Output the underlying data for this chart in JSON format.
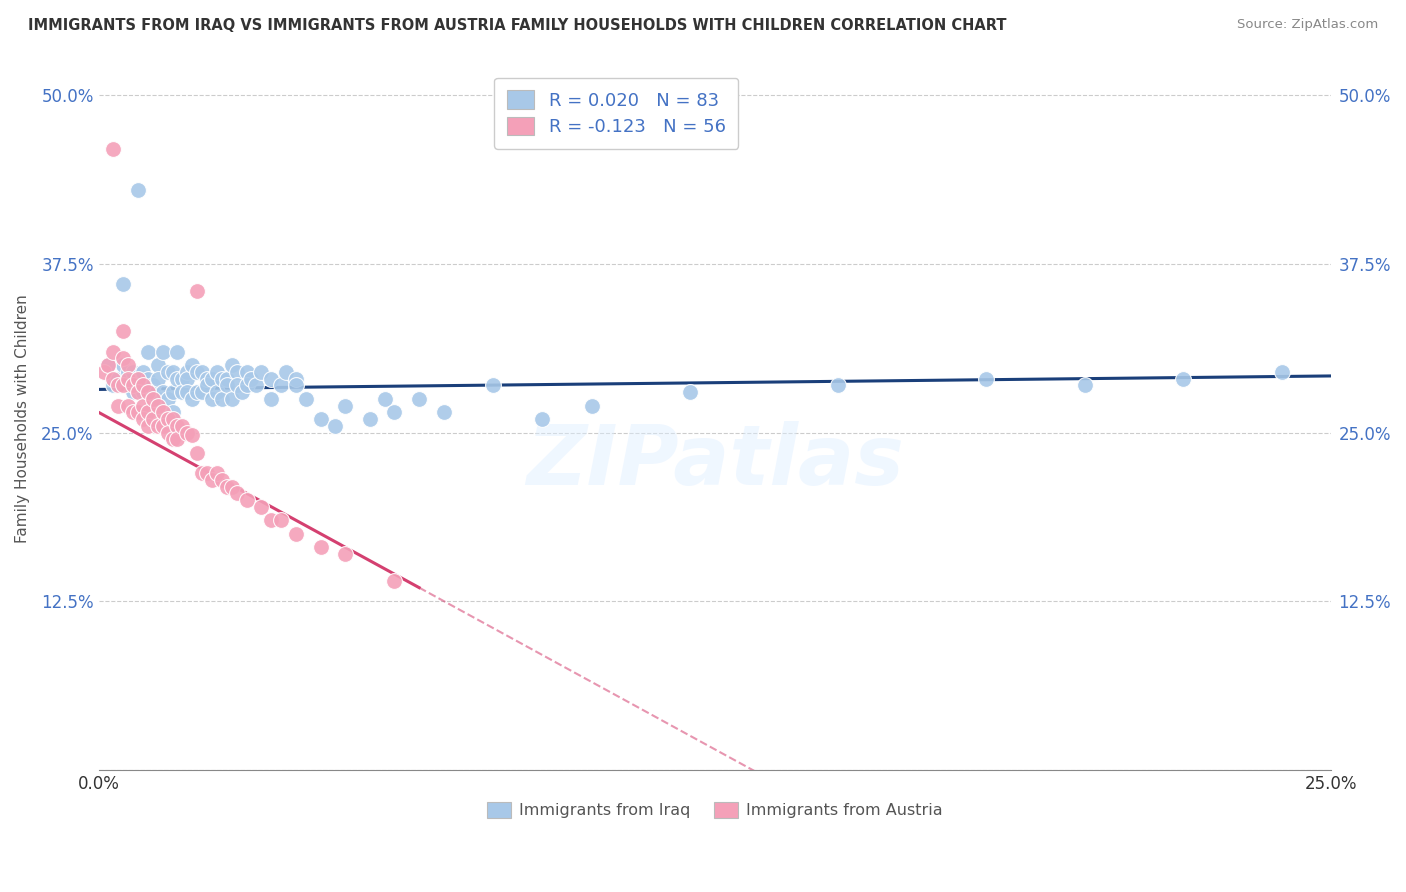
{
  "title": "IMMIGRANTS FROM IRAQ VS IMMIGRANTS FROM AUSTRIA FAMILY HOUSEHOLDS WITH CHILDREN CORRELATION CHART",
  "source": "Source: ZipAtlas.com",
  "ylabel": "Family Households with Children",
  "legend_iraq": "Immigrants from Iraq",
  "legend_austria": "Immigrants from Austria",
  "R_iraq": 0.02,
  "N_iraq": 83,
  "R_austria": -0.123,
  "N_austria": 56,
  "color_iraq": "#a8c8e8",
  "color_austria": "#f4a0b8",
  "trendline_iraq_color": "#1a3f7a",
  "trendline_austria_color": "#d44070",
  "background_color": "#ffffff",
  "xlim": [
    0.0,
    0.25
  ],
  "ylim": [
    0.0,
    0.52
  ],
  "ytick_vals": [
    0.0,
    0.125,
    0.25,
    0.375,
    0.5
  ],
  "ytick_labels": [
    "",
    "12.5%",
    "25.0%",
    "37.5%",
    "50.0%"
  ],
  "xtick_vals": [
    0.0,
    0.025,
    0.05,
    0.075,
    0.1,
    0.125,
    0.15,
    0.175,
    0.2,
    0.225,
    0.25
  ],
  "iraq_x": [
    0.002,
    0.003,
    0.004,
    0.005,
    0.005,
    0.006,
    0.007,
    0.007,
    0.008,
    0.008,
    0.009,
    0.009,
    0.01,
    0.01,
    0.011,
    0.011,
    0.012,
    0.012,
    0.012,
    0.013,
    0.013,
    0.014,
    0.014,
    0.015,
    0.015,
    0.015,
    0.016,
    0.016,
    0.017,
    0.017,
    0.018,
    0.018,
    0.018,
    0.019,
    0.019,
    0.02,
    0.02,
    0.021,
    0.021,
    0.022,
    0.022,
    0.023,
    0.023,
    0.024,
    0.024,
    0.025,
    0.025,
    0.026,
    0.026,
    0.027,
    0.027,
    0.028,
    0.028,
    0.029,
    0.03,
    0.03,
    0.031,
    0.032,
    0.033,
    0.035,
    0.035,
    0.037,
    0.038,
    0.04,
    0.04,
    0.042,
    0.045,
    0.048,
    0.05,
    0.055,
    0.058,
    0.06,
    0.065,
    0.07,
    0.08,
    0.09,
    0.1,
    0.12,
    0.15,
    0.18,
    0.2,
    0.22,
    0.24
  ],
  "iraq_y": [
    0.3,
    0.285,
    0.29,
    0.36,
    0.3,
    0.295,
    0.295,
    0.28,
    0.43,
    0.29,
    0.295,
    0.28,
    0.29,
    0.31,
    0.285,
    0.28,
    0.3,
    0.29,
    0.275,
    0.31,
    0.28,
    0.295,
    0.275,
    0.295,
    0.28,
    0.265,
    0.31,
    0.29,
    0.29,
    0.28,
    0.295,
    0.29,
    0.28,
    0.3,
    0.275,
    0.295,
    0.28,
    0.295,
    0.28,
    0.29,
    0.285,
    0.29,
    0.275,
    0.295,
    0.28,
    0.29,
    0.275,
    0.29,
    0.285,
    0.3,
    0.275,
    0.295,
    0.285,
    0.28,
    0.295,
    0.285,
    0.29,
    0.285,
    0.295,
    0.29,
    0.275,
    0.285,
    0.295,
    0.29,
    0.285,
    0.275,
    0.26,
    0.255,
    0.27,
    0.26,
    0.275,
    0.265,
    0.275,
    0.265,
    0.285,
    0.26,
    0.27,
    0.28,
    0.285,
    0.29,
    0.285,
    0.29,
    0.295
  ],
  "austria_x": [
    0.001,
    0.002,
    0.003,
    0.003,
    0.004,
    0.004,
    0.005,
    0.005,
    0.005,
    0.006,
    0.006,
    0.006,
    0.007,
    0.007,
    0.008,
    0.008,
    0.008,
    0.009,
    0.009,
    0.009,
    0.01,
    0.01,
    0.01,
    0.011,
    0.011,
    0.012,
    0.012,
    0.013,
    0.013,
    0.014,
    0.014,
    0.015,
    0.015,
    0.016,
    0.016,
    0.017,
    0.018,
    0.019,
    0.02,
    0.02,
    0.021,
    0.022,
    0.023,
    0.024,
    0.025,
    0.026,
    0.027,
    0.028,
    0.03,
    0.033,
    0.035,
    0.037,
    0.04,
    0.045,
    0.05,
    0.06
  ],
  "austria_y": [
    0.295,
    0.3,
    0.31,
    0.29,
    0.285,
    0.27,
    0.325,
    0.305,
    0.285,
    0.3,
    0.29,
    0.27,
    0.285,
    0.265,
    0.29,
    0.28,
    0.265,
    0.285,
    0.27,
    0.26,
    0.28,
    0.265,
    0.255,
    0.275,
    0.26,
    0.27,
    0.255,
    0.265,
    0.255,
    0.26,
    0.25,
    0.26,
    0.245,
    0.255,
    0.245,
    0.255,
    0.25,
    0.248,
    0.235,
    0.355,
    0.22,
    0.22,
    0.215,
    0.22,
    0.215,
    0.21,
    0.21,
    0.205,
    0.2,
    0.195,
    0.185,
    0.185,
    0.175,
    0.165,
    0.16,
    0.14
  ],
  "austria_pink_outlier_x": [
    0.003
  ],
  "austria_pink_outlier_y": [
    0.46
  ],
  "austria_trendline_solid_end": 0.065,
  "watermark": "ZIPatlas"
}
